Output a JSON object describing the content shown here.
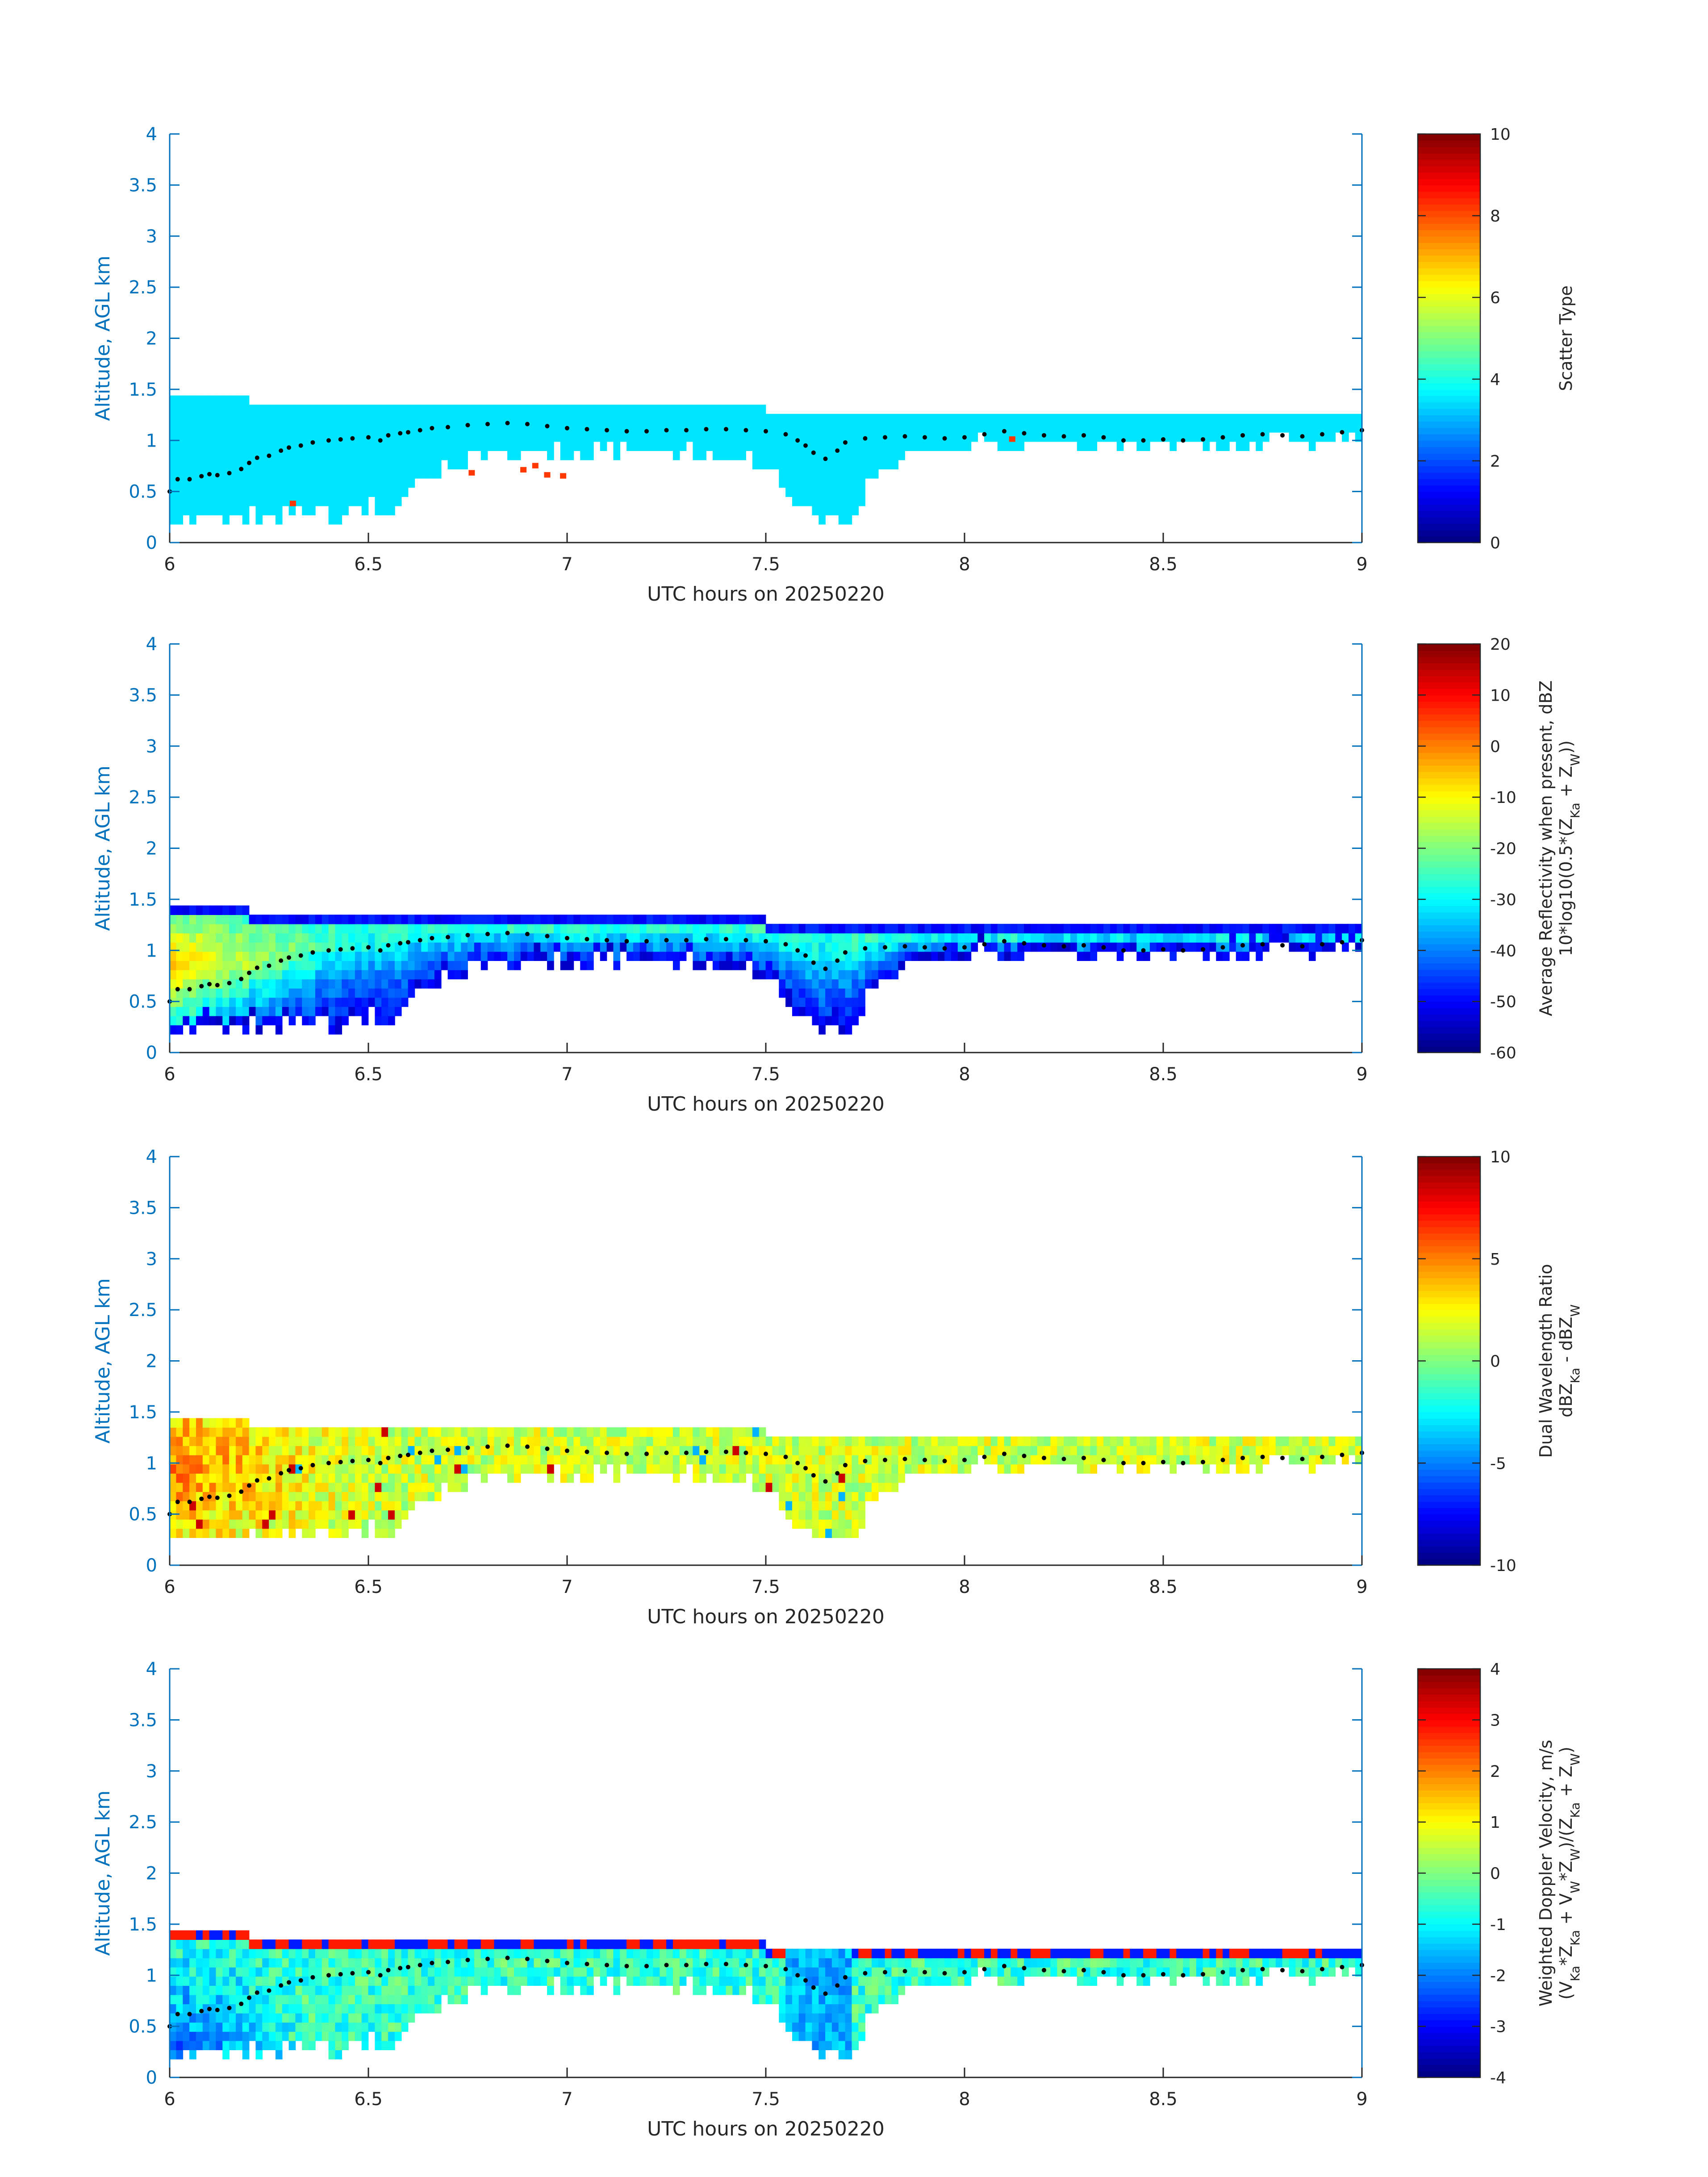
{
  "chart_data": [
    {
      "type": "heatmap",
      "xlabel": "UTC hours on 20250220",
      "ylabel": "Altitude, AGL km",
      "xlim": [
        6,
        9
      ],
      "ylim": [
        0,
        4
      ],
      "xticks": [
        "6",
        "6.5",
        "7",
        "7.5",
        "8",
        "8.5",
        "9"
      ],
      "yticks": [
        "0",
        "0.5",
        "1",
        "1.5",
        "2",
        "2.5",
        "3",
        "3.5",
        "4"
      ],
      "colorbar": {
        "label_lines": [
          "Scatter Type"
        ],
        "clim": [
          0,
          10
        ],
        "ticks": [
          "0",
          "2",
          "4",
          "6",
          "8",
          "10"
        ]
      },
      "field": {
        "kind": "scatter_type",
        "base_value": 3.5,
        "outlier_value": 8.2,
        "outliers": [
          [
            6.31,
            0.35
          ],
          [
            6.76,
            0.65
          ],
          [
            6.89,
            0.68
          ],
          [
            6.92,
            0.72
          ],
          [
            6.95,
            0.63
          ],
          [
            6.99,
            0.62
          ],
          [
            8.12,
            0.98
          ]
        ]
      }
    },
    {
      "type": "heatmap",
      "xlabel": "UTC hours on 20250220",
      "ylabel": "Altitude, AGL km",
      "xlim": [
        6,
        9
      ],
      "ylim": [
        0,
        4
      ],
      "xticks": [
        "6",
        "6.5",
        "7",
        "7.5",
        "8",
        "8.5",
        "9"
      ],
      "yticks": [
        "0",
        "0.5",
        "1",
        "1.5",
        "2",
        "2.5",
        "3",
        "3.5",
        "4"
      ],
      "colorbar": {
        "label_lines": [
          "Average Reflectivity when present, dBZ",
          "10*log10(0.5*(Z_Ka + Z_W))"
        ],
        "clim": [
          -60,
          20
        ],
        "ticks": [
          "-60",
          "-50",
          "-40",
          "-30",
          "-20",
          "-10",
          "0",
          "10",
          "20"
        ]
      },
      "field": {
        "kind": "reflectivity"
      }
    },
    {
      "type": "heatmap",
      "xlabel": "UTC hours on 20250220",
      "ylabel": "Altitude, AGL km",
      "xlim": [
        6,
        9
      ],
      "ylim": [
        0,
        4
      ],
      "xticks": [
        "6",
        "6.5",
        "7",
        "7.5",
        "8",
        "8.5",
        "9"
      ],
      "yticks": [
        "0",
        "0.5",
        "1",
        "1.5",
        "2",
        "2.5",
        "3",
        "3.5",
        "4"
      ],
      "colorbar": {
        "label_lines": [
          "Dual Wavelength Ratio",
          "dBZ_Ka - dBZ_W"
        ],
        "clim": [
          -10,
          10
        ],
        "ticks": [
          "-10",
          "-5",
          "0",
          "5",
          "10"
        ]
      },
      "field": {
        "kind": "dwr"
      }
    },
    {
      "type": "heatmap",
      "xlabel": "UTC hours on 20250220",
      "ylabel": "Altitude, AGL km",
      "xlim": [
        6,
        9
      ],
      "ylim": [
        0,
        4
      ],
      "xticks": [
        "6",
        "6.5",
        "7",
        "7.5",
        "8",
        "8.5",
        "9"
      ],
      "yticks": [
        "0",
        "0.5",
        "1",
        "1.5",
        "2",
        "2.5",
        "3",
        "3.5",
        "4"
      ],
      "colorbar": {
        "label_lines": [
          "Weighted Doppler Velocity, m/s",
          "(V_Ka*Z_Ka + V_W*Z_W)/(Z_Ka + Z_W)"
        ],
        "clim": [
          -4,
          4
        ],
        "ticks": [
          "-4",
          "-3",
          "-2",
          "-1",
          "0",
          "1",
          "2",
          "3",
          "4"
        ]
      },
      "field": {
        "kind": "velocity"
      }
    }
  ],
  "echo_envelope": {
    "description_free": true,
    "top_km": [
      [
        6.0,
        1.37
      ],
      [
        6.2,
        1.35
      ],
      [
        6.6,
        1.32
      ],
      [
        6.7,
        1.3
      ],
      [
        7.0,
        1.28
      ],
      [
        7.5,
        1.26
      ],
      [
        7.65,
        1.25
      ],
      [
        7.8,
        1.2
      ],
      [
        8.0,
        1.18
      ],
      [
        8.5,
        1.18
      ],
      [
        9.0,
        1.18
      ]
    ],
    "bottom_km": [
      [
        6.0,
        0.18
      ],
      [
        6.2,
        0.2
      ],
      [
        6.3,
        0.28
      ],
      [
        6.4,
        0.22
      ],
      [
        6.5,
        0.35
      ],
      [
        6.55,
        0.2
      ],
      [
        6.6,
        0.45
      ],
      [
        6.65,
        0.6
      ],
      [
        6.7,
        0.75
      ],
      [
        6.8,
        0.82
      ],
      [
        7.0,
        0.85
      ],
      [
        7.2,
        0.85
      ],
      [
        7.4,
        0.8
      ],
      [
        7.5,
        0.75
      ],
      [
        7.55,
        0.5
      ],
      [
        7.6,
        0.25
      ],
      [
        7.65,
        0.18
      ],
      [
        7.72,
        0.18
      ],
      [
        7.75,
        0.5
      ],
      [
        7.8,
        0.7
      ],
      [
        8.0,
        0.9
      ],
      [
        8.2,
        0.92
      ],
      [
        8.5,
        0.9
      ],
      [
        8.8,
        0.95
      ],
      [
        9.0,
        0.96
      ]
    ]
  },
  "cloud_base_dots_km": [
    [
      6.0,
      0.5
    ],
    [
      6.02,
      0.62
    ],
    [
      6.05,
      0.62
    ],
    [
      6.08,
      0.65
    ],
    [
      6.1,
      0.67
    ],
    [
      6.12,
      0.66
    ],
    [
      6.15,
      0.68
    ],
    [
      6.18,
      0.72
    ],
    [
      6.2,
      0.78
    ],
    [
      6.22,
      0.83
    ],
    [
      6.25,
      0.85
    ],
    [
      6.28,
      0.9
    ],
    [
      6.3,
      0.93
    ],
    [
      6.33,
      0.95
    ],
    [
      6.36,
      0.98
    ],
    [
      6.4,
      1.0
    ],
    [
      6.43,
      1.01
    ],
    [
      6.46,
      1.02
    ],
    [
      6.5,
      1.03
    ],
    [
      6.53,
      1.0
    ],
    [
      6.55,
      1.05
    ],
    [
      6.58,
      1.07
    ],
    [
      6.6,
      1.08
    ],
    [
      6.63,
      1.1
    ],
    [
      6.66,
      1.12
    ],
    [
      6.7,
      1.13
    ],
    [
      6.75,
      1.15
    ],
    [
      6.8,
      1.16
    ],
    [
      6.85,
      1.17
    ],
    [
      6.9,
      1.16
    ],
    [
      6.95,
      1.14
    ],
    [
      7.0,
      1.12
    ],
    [
      7.05,
      1.11
    ],
    [
      7.1,
      1.1
    ],
    [
      7.15,
      1.09
    ],
    [
      7.2,
      1.09
    ],
    [
      7.25,
      1.1
    ],
    [
      7.3,
      1.1
    ],
    [
      7.35,
      1.11
    ],
    [
      7.4,
      1.11
    ],
    [
      7.45,
      1.1
    ],
    [
      7.5,
      1.09
    ],
    [
      7.55,
      1.06
    ],
    [
      7.58,
      1.0
    ],
    [
      7.6,
      0.95
    ],
    [
      7.62,
      0.88
    ],
    [
      7.65,
      0.82
    ],
    [
      7.68,
      0.9
    ],
    [
      7.7,
      0.98
    ],
    [
      7.75,
      1.02
    ],
    [
      7.8,
      1.03
    ],
    [
      7.85,
      1.04
    ],
    [
      7.9,
      1.03
    ],
    [
      7.95,
      1.02
    ],
    [
      8.0,
      1.03
    ],
    [
      8.05,
      1.06
    ],
    [
      8.1,
      1.09
    ],
    [
      8.15,
      1.07
    ],
    [
      8.2,
      1.05
    ],
    [
      8.25,
      1.04
    ],
    [
      8.3,
      1.05
    ],
    [
      8.35,
      1.03
    ],
    [
      8.4,
      1.0
    ],
    [
      8.45,
      1.0
    ],
    [
      8.5,
      1.01
    ],
    [
      8.55,
      1.0
    ],
    [
      8.6,
      1.01
    ],
    [
      8.65,
      1.03
    ],
    [
      8.7,
      1.05
    ],
    [
      8.75,
      1.06
    ],
    [
      8.8,
      1.05
    ],
    [
      8.85,
      1.04
    ],
    [
      8.9,
      1.06
    ],
    [
      8.95,
      1.08
    ],
    [
      9.0,
      1.1
    ]
  ],
  "colors": {
    "axis_blue": "#0072bd",
    "text_dark": "#262626"
  }
}
